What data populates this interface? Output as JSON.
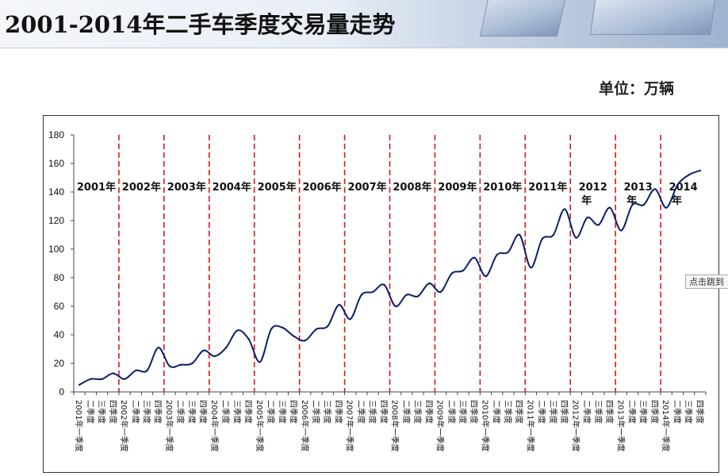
{
  "header": {
    "title": "2001-2014年二手车季度交易量走势"
  },
  "unit_label": "单位：万辆",
  "tooltip": "点击跳到",
  "colors": {
    "line": "#0d1f6b",
    "year_divider": "#d7191c"
  },
  "chart_data": {
    "type": "line",
    "title": "2001-2014年二手车季度交易量走势",
    "xlabel": "",
    "ylabel": "单位：万辆",
    "ylim": [
      0,
      180
    ],
    "yticks": [
      0,
      20,
      40,
      60,
      80,
      100,
      120,
      140,
      160,
      180
    ],
    "grid": false,
    "legend": "none",
    "year_labels": [
      "2001年",
      "2002年",
      "2003年",
      "2004年",
      "2005年",
      "2006年",
      "2007年",
      "2008年",
      "2009年",
      "2010年",
      "2011年",
      "2012年",
      "2013年",
      "2014年"
    ],
    "categories": [
      "2001年一季度",
      "二季度",
      "三季度",
      "四季度",
      "2002年一季度",
      "二季度",
      "三季度",
      "四季度",
      "2003年一季度",
      "二季度",
      "三季度",
      "四季度",
      "2004年一季度",
      "二季度",
      "三季度",
      "四季度",
      "2005年一季度",
      "二季度",
      "三季度",
      "四季度",
      "2006年一季度",
      "二季度",
      "三季度",
      "四季度",
      "2007年一季度",
      "二季度",
      "三季度",
      "四季度",
      "2008年一季度",
      "二季度",
      "三季度",
      "四季度",
      "2009年一季度",
      "二季度",
      "三季度",
      "四季度",
      "2010年一季度",
      "二季度",
      "三季度",
      "四季度",
      "2011年一季度",
      "二季度",
      "三季度",
      "四季度",
      "2012年一季度",
      "二季度",
      "三季度",
      "四季度",
      "2013年一季度",
      "二季度",
      "三季度",
      "四季度",
      "2014年一季度",
      "二季度",
      "三季度",
      "四季度"
    ],
    "series": [
      {
        "values": [
          5,
          9,
          9,
          13,
          9,
          15,
          15,
          31,
          18,
          19,
          20,
          29,
          25,
          31,
          43,
          37,
          21,
          44,
          45,
          39,
          36,
          44,
          46,
          61,
          51,
          68,
          70,
          75,
          60,
          68,
          67,
          76,
          70,
          83,
          85,
          94,
          81,
          96,
          98,
          110,
          87,
          107,
          110,
          128,
          108,
          122,
          117,
          129,
          113,
          131,
          131,
          142,
          129,
          145,
          152,
          155
        ]
      }
    ]
  }
}
